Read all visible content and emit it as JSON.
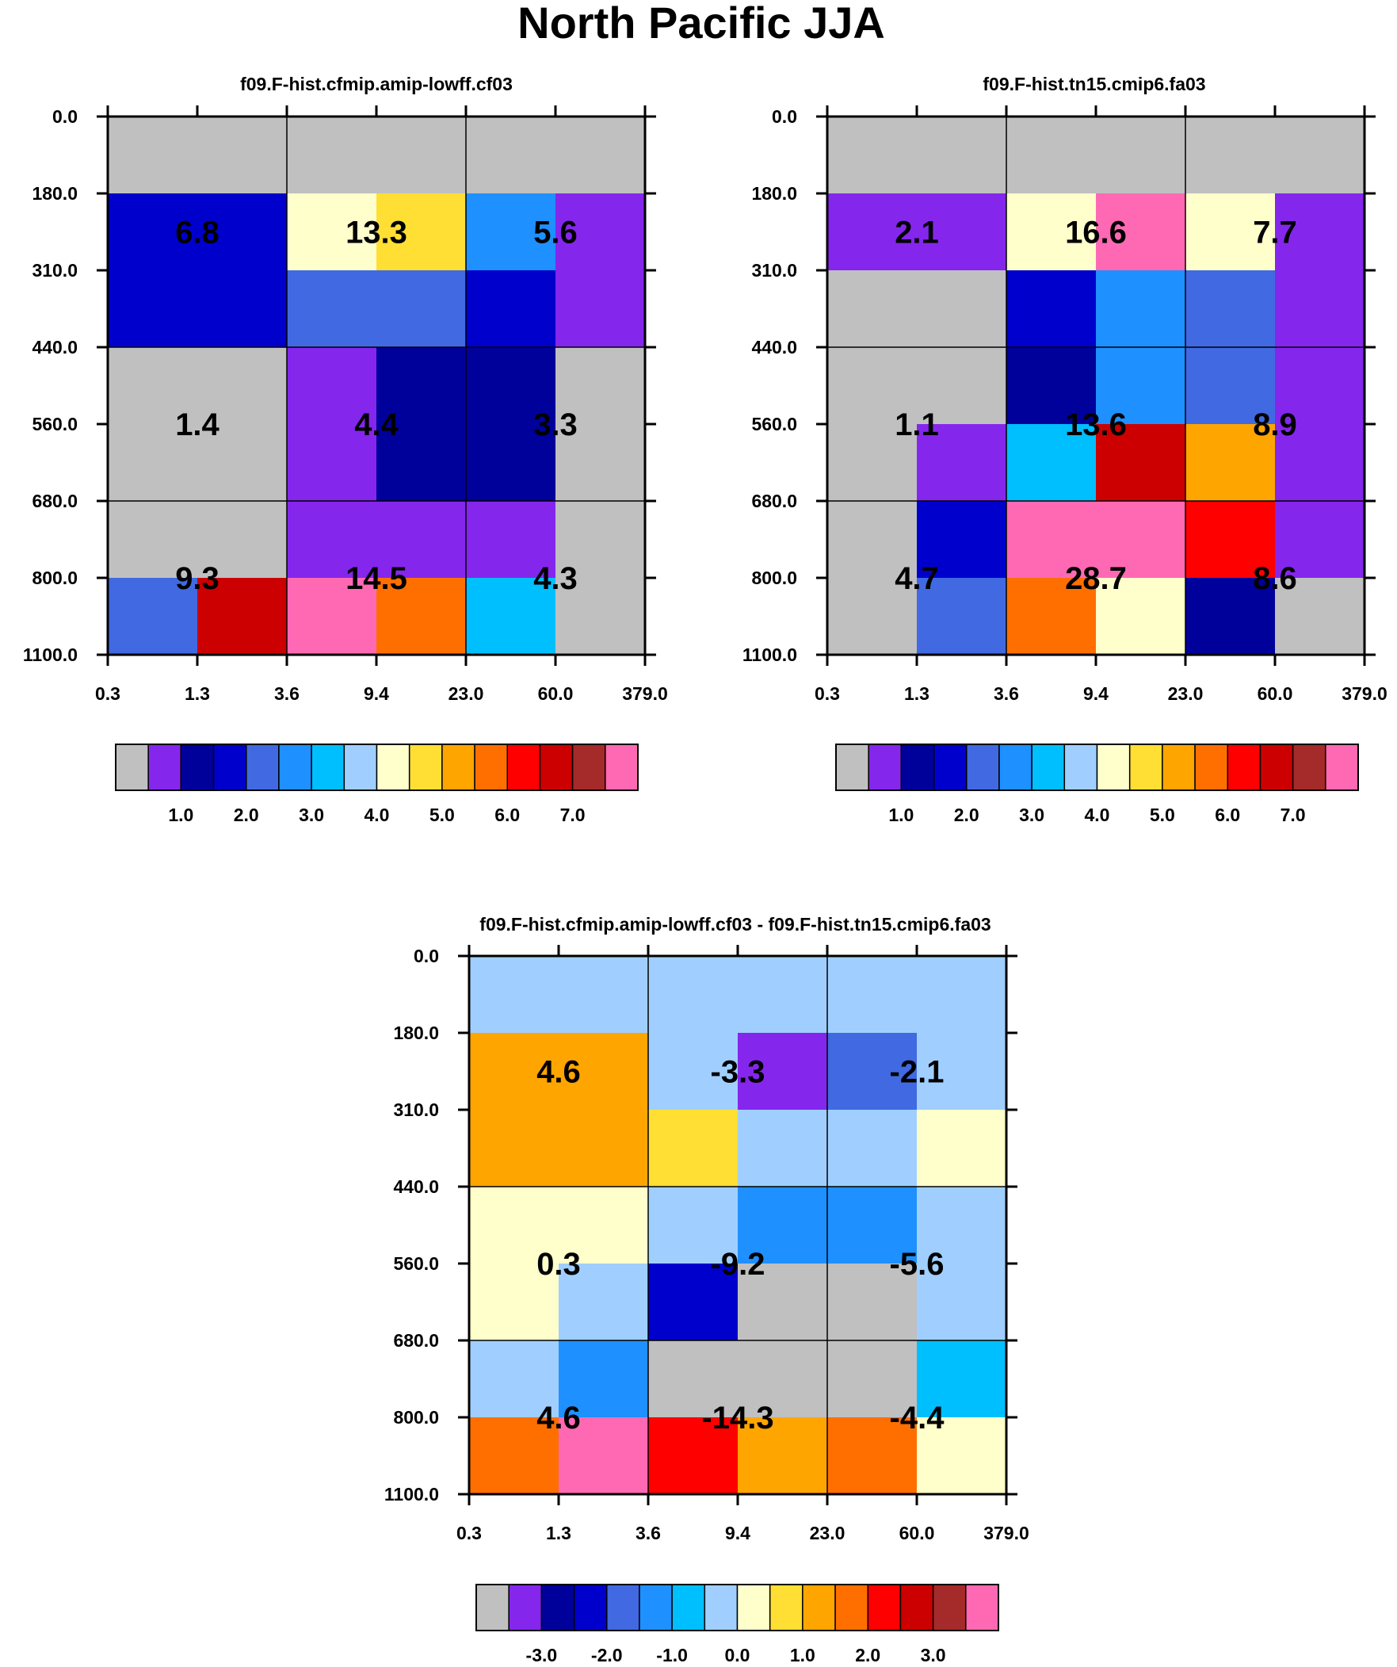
{
  "title": "North Pacific JJA",
  "colors": {
    "grey": "#c0c0c0",
    "violet": "#8526ec",
    "navy": "#00009b",
    "dblue": "#0000cd",
    "royal": "#4169e1",
    "dodger": "#1e90ff",
    "cyan": "#00bfff",
    "lblue": "#a0cfff",
    "cream": "#ffffcc",
    "gold": "#ffdf33",
    "orange": "#ffa500",
    "dorange": "#ff6f00",
    "red": "#ff0000",
    "dred": "#cc0000",
    "brown": "#a52a2a",
    "pink": "#ff69b4"
  },
  "chart_data": [
    {
      "type": "heatmap",
      "title": "f09.F-hist.cfmip.amip-lowff.cf03",
      "x_ticks": [
        "0.3",
        "1.3",
        "3.6",
        "9.4",
        "23.0",
        "60.0",
        "379.0"
      ],
      "y_ticks": [
        "0.0",
        "180.0",
        "310.0",
        "440.0",
        "560.0",
        "680.0",
        "800.0",
        "1100.0"
      ],
      "cells": [
        [
          "grey",
          "grey",
          "grey",
          "grey",
          "grey",
          "grey"
        ],
        [
          "dblue",
          "dblue",
          "cream",
          "gold",
          "dodger",
          "violet"
        ],
        [
          "dblue",
          "dblue",
          "royal",
          "royal",
          "dblue",
          "violet"
        ],
        [
          "grey",
          "grey",
          "violet",
          "navy",
          "navy",
          "grey"
        ],
        [
          "grey",
          "grey",
          "violet",
          "navy",
          "navy",
          "grey"
        ],
        [
          "grey",
          "grey",
          "violet",
          "violet",
          "violet",
          "grey"
        ],
        [
          "royal",
          "dred",
          "pink",
          "dorange",
          "cyan",
          "grey"
        ]
      ],
      "totals": [
        [
          "6.8",
          "13.3",
          "5.6"
        ],
        [
          "1.4",
          "4.4",
          "3.3"
        ],
        [
          "9.3",
          "14.5",
          "4.3"
        ]
      ],
      "colorbar": {
        "colors": [
          "grey",
          "violet",
          "navy",
          "dblue",
          "royal",
          "dodger",
          "cyan",
          "lblue",
          "cream",
          "gold",
          "orange",
          "dorange",
          "red",
          "dred",
          "brown",
          "pink"
        ],
        "labels": [
          "1.0",
          "2.0",
          "3.0",
          "4.0",
          "5.0",
          "6.0",
          "7.0"
        ],
        "label_boundaries": [
          2,
          4,
          6,
          8,
          10,
          12,
          14
        ]
      }
    },
    {
      "type": "heatmap",
      "title": "f09.F-hist.tn15.cmip6.fa03",
      "x_ticks": [
        "0.3",
        "1.3",
        "3.6",
        "9.4",
        "23.0",
        "60.0",
        "379.0"
      ],
      "y_ticks": [
        "0.0",
        "180.0",
        "310.0",
        "440.0",
        "560.0",
        "680.0",
        "800.0",
        "1100.0"
      ],
      "cells": [
        [
          "grey",
          "grey",
          "grey",
          "grey",
          "grey",
          "grey"
        ],
        [
          "violet",
          "violet",
          "cream",
          "pink",
          "cream",
          "violet"
        ],
        [
          "grey",
          "grey",
          "dblue",
          "dodger",
          "royal",
          "violet"
        ],
        [
          "grey",
          "grey",
          "navy",
          "dodger",
          "royal",
          "violet"
        ],
        [
          "grey",
          "violet",
          "cyan",
          "dred",
          "orange",
          "violet"
        ],
        [
          "grey",
          "dblue",
          "pink",
          "pink",
          "red",
          "violet"
        ],
        [
          "grey",
          "royal",
          "dorange",
          "cream",
          "navy",
          "grey"
        ]
      ],
      "totals": [
        [
          "2.1",
          "16.6",
          "7.7"
        ],
        [
          "1.1",
          "13.6",
          "8.9"
        ],
        [
          "4.7",
          "28.7",
          "8.6"
        ]
      ],
      "colorbar": {
        "colors": [
          "grey",
          "violet",
          "navy",
          "dblue",
          "royal",
          "dodger",
          "cyan",
          "lblue",
          "cream",
          "gold",
          "orange",
          "dorange",
          "red",
          "dred",
          "brown",
          "pink"
        ],
        "labels": [
          "1.0",
          "2.0",
          "3.0",
          "4.0",
          "5.0",
          "6.0",
          "7.0"
        ],
        "label_boundaries": [
          2,
          4,
          6,
          8,
          10,
          12,
          14
        ]
      }
    },
    {
      "type": "heatmap",
      "title": "f09.F-hist.cfmip.amip-lowff.cf03 - f09.F-hist.tn15.cmip6.fa03",
      "x_ticks": [
        "0.3",
        "1.3",
        "3.6",
        "9.4",
        "23.0",
        "60.0",
        "379.0"
      ],
      "y_ticks": [
        "0.0",
        "180.0",
        "310.0",
        "440.0",
        "560.0",
        "680.0",
        "800.0",
        "1100.0"
      ],
      "cells": [
        [
          "lblue",
          "lblue",
          "lblue",
          "lblue",
          "lblue",
          "lblue"
        ],
        [
          "orange",
          "orange",
          "lblue",
          "violet",
          "royal",
          "lblue"
        ],
        [
          "orange",
          "orange",
          "gold",
          "lblue",
          "lblue",
          "cream"
        ],
        [
          "cream",
          "cream",
          "lblue",
          "dodger",
          "dodger",
          "lblue"
        ],
        [
          "cream",
          "lblue",
          "dblue",
          "grey",
          "grey",
          "lblue"
        ],
        [
          "lblue",
          "dodger",
          "grey",
          "grey",
          "grey",
          "cyan"
        ],
        [
          "dorange",
          "pink",
          "red",
          "orange",
          "dorange",
          "cream"
        ]
      ],
      "totals": [
        [
          "4.6",
          "-3.3",
          "-2.1"
        ],
        [
          "0.3",
          "-9.2",
          "-5.6"
        ],
        [
          "4.6",
          "-14.3",
          "-4.4"
        ]
      ],
      "colorbar": {
        "colors": [
          "grey",
          "violet",
          "navy",
          "dblue",
          "royal",
          "dodger",
          "cyan",
          "lblue",
          "cream",
          "gold",
          "orange",
          "dorange",
          "red",
          "dred",
          "brown",
          "pink"
        ],
        "labels": [
          "-3.0",
          "-2.0",
          "-1.0",
          "0.0",
          "1.0",
          "2.0",
          "3.0"
        ],
        "label_boundaries": [
          2,
          4,
          6,
          8,
          10,
          12,
          14
        ]
      }
    }
  ]
}
